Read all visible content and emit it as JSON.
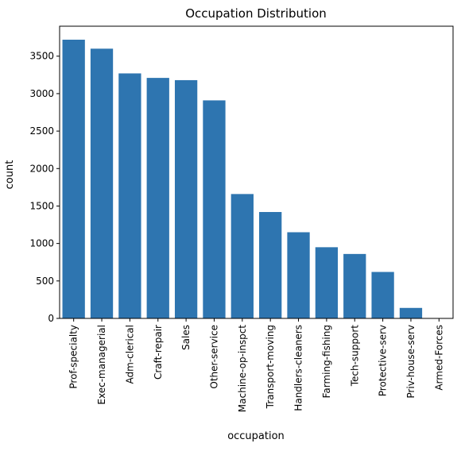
{
  "chart_data": {
    "type": "bar",
    "title": "Occupation Distribution",
    "xlabel": "occupation",
    "ylabel": "count",
    "categories": [
      "Prof-specialty",
      "Exec-managerial",
      "Adm-clerical",
      "Craft-repair",
      "Sales",
      "Other-service",
      "Machine-op-inspct",
      "Transport-moving",
      "Handlers-cleaners",
      "Farming-fishing",
      "Tech-support",
      "Protective-serv",
      "Priv-house-serv",
      "Armed-Forces"
    ],
    "values": [
      3720,
      3600,
      3270,
      3210,
      3180,
      2910,
      1660,
      1420,
      1150,
      950,
      860,
      620,
      140,
      5
    ],
    "ylim": [
      0,
      3900
    ],
    "yticks": [
      0,
      500,
      1000,
      1500,
      2000,
      2500,
      3000,
      3500
    ],
    "bar_color": "#2e75b0",
    "grid": false,
    "legend": null
  }
}
